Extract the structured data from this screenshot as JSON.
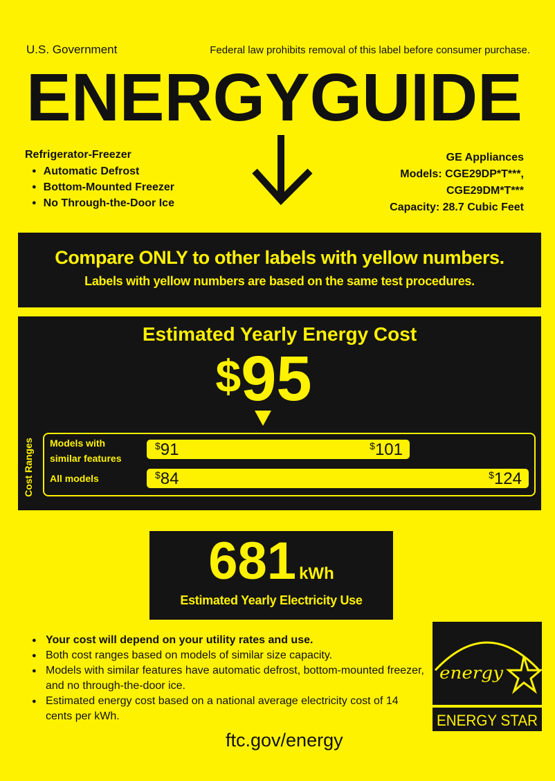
{
  "header": {
    "gov": "U.S. Government",
    "law_notice": "Federal law prohibits removal of this label before consumer purchase.",
    "title": "ENERGYGUIDE"
  },
  "product": {
    "type": "Refrigerator-Freezer",
    "features": [
      "Automatic Defrost",
      "Bottom-Mounted Freezer",
      "No Through-the-Door Ice"
    ],
    "manufacturer": "GE Appliances",
    "models_line1": "Models:  CGE29DP*T***,",
    "models_line2": "CGE29DM*T***",
    "capacity": "Capacity: 28.7 Cubic Feet"
  },
  "compare": {
    "line1": "Compare ONLY to other labels with yellow numbers.",
    "line2": "Labels with yellow numbers are based on the same test procedures."
  },
  "cost": {
    "title": "Estimated Yearly Energy Cost",
    "currency": "$",
    "value": "95",
    "ranges_label": "Cost Ranges",
    "similar": {
      "label_1": "Models with",
      "label_2": "similar features",
      "low": "91",
      "high": "101"
    },
    "all": {
      "label": "All models",
      "low": "84",
      "high": "124"
    }
  },
  "electricity": {
    "value": "681",
    "unit": "kWh",
    "label": "Estimated Yearly Electricity Use"
  },
  "notes": [
    "Your cost will depend on your utility rates and use.",
    "Both cost ranges based on models of similar size capacity.",
    "Models with similar features have automatic defrost, bottom-mounted freezer, and no through-the-door ice.",
    "Estimated energy cost based on a national average electricity cost of 14 cents per kWh."
  ],
  "footer": {
    "url": "ftc.gov/energy"
  },
  "energy_star": {
    "script": "energy",
    "label": "ENERGY STAR"
  },
  "colors": {
    "yellow": "#fff200",
    "dark": "#141414"
  }
}
